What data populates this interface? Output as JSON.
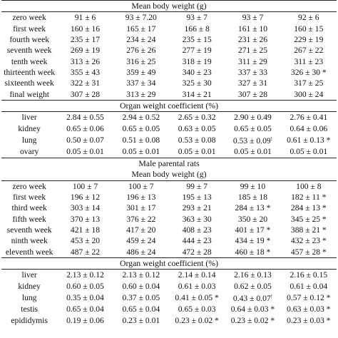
{
  "rows": [
    {
      "kind": "section",
      "text": "Mean body weight (g)",
      "ruleBottom": true
    },
    {
      "kind": "data",
      "label": "zero week",
      "values": [
        "91 ± 6",
        "93 ± 7.20",
        "93 ± 7",
        "93 ± 7",
        "92 ± 6"
      ]
    },
    {
      "kind": "data",
      "label": "first week",
      "values": [
        "160 ± 16",
        "165 ± 17",
        "166 ± 8",
        "161 ± 10",
        "160 ± 15"
      ]
    },
    {
      "kind": "data",
      "label": "fourth week",
      "values": [
        "235 ± 17",
        "234 ± 24",
        "235 ± 15",
        "231 ± 26",
        "229 ± 19"
      ]
    },
    {
      "kind": "data",
      "label": "seventh week",
      "values": [
        "269 ± 19",
        "276 ± 26",
        "277 ± 19",
        "271 ± 25",
        "267 ± 22"
      ]
    },
    {
      "kind": "data",
      "label": "tenth week",
      "values": [
        "313 ± 26",
        "316 ± 25",
        "318 ± 19",
        "311 ± 29",
        "311 ± 23"
      ]
    },
    {
      "kind": "data",
      "label": "thirteenth week",
      "values": [
        "355 ± 43",
        "359 ± 49",
        "340 ± 23",
        "337 ± 33",
        "326 ± 30 *"
      ]
    },
    {
      "kind": "data",
      "label": "sixteenth week",
      "values": [
        "322 ± 31",
        "337 ± 34",
        "325 ± 30",
        "327 ± 31",
        "317 ± 25"
      ]
    },
    {
      "kind": "data",
      "label": "final weight",
      "values": [
        "307 ± 28",
        "313 ± 29",
        "314 ± 21",
        "307 ± 28",
        "300 ± 24"
      ],
      "ruleBottom": true
    },
    {
      "kind": "section",
      "text": "Organ weight coefficient (%)",
      "ruleBottom": true
    },
    {
      "kind": "data",
      "label": "liver",
      "values": [
        "2.84 ± 0.55",
        "2.94 ± 0.52",
        "2.65 ± 0.32",
        "2.90 ± 0.49",
        "2.76 ± 0.41"
      ]
    },
    {
      "kind": "data",
      "label": "kidney",
      "values": [
        "0.65 ± 0.06",
        "0.65 ± 0.05",
        "0.63 ± 0.05",
        "0.65 ± 0.05",
        "0.64 ± 0.06"
      ]
    },
    {
      "kind": "data",
      "label": "lung",
      "values": [
        "0.50 ± 0.07",
        "0.51 ± 0.08",
        "0.53 ± 0.08",
        "0.53 ± 0.09",
        "0.61 ± 0.13 *"
      ],
      "sups": [
        null,
        null,
        null,
        "!",
        null
      ]
    },
    {
      "kind": "data",
      "label": "ovary",
      "values": [
        "0.05 ± 0.01",
        "0.05 ± 0.01",
        "0.05 ± 0.01",
        "0.05 ± 0.01",
        "0.05 ± 0.01"
      ],
      "ruleBottom": true
    },
    {
      "kind": "section",
      "text": "Male parental rats"
    },
    {
      "kind": "section",
      "text": "Mean body weight (g)",
      "ruleBottom": true
    },
    {
      "kind": "data",
      "label": "zero week",
      "values": [
        "100 ± 7",
        "100 ± 7",
        "99 ± 7",
        "99 ± 10",
        "100 ± 8"
      ]
    },
    {
      "kind": "data",
      "label": "first week",
      "values": [
        "196 ± 12",
        "196 ± 13",
        "195 ± 13",
        "185 ± 18",
        "182 ± 11 *"
      ]
    },
    {
      "kind": "data",
      "label": "third week",
      "values": [
        "303 ± 14",
        "301 ± 17",
        "293 ± 21",
        "284 ± 13 *",
        "284 ± 13 *"
      ]
    },
    {
      "kind": "data",
      "label": "fifth week",
      "values": [
        "370 ± 13",
        "376 ± 22",
        "363 ± 30",
        "350 ± 20",
        "345 ± 25 *"
      ]
    },
    {
      "kind": "data",
      "label": "seventh week",
      "values": [
        "421 ± 18",
        "417 ± 20",
        "408 ± 23",
        "401 ± 17 *",
        "388 ± 21 *"
      ]
    },
    {
      "kind": "data",
      "label": "ninth week",
      "values": [
        "453 ± 20",
        "459 ± 24",
        "444 ± 23",
        "434 ± 19 *",
        "432 ± 23 *"
      ]
    },
    {
      "kind": "data",
      "label": "eleventh week",
      "values": [
        "487 ± 22",
        "486 ± 24",
        "472 ± 28",
        "460 ± 18 *",
        "457 ± 28 *"
      ],
      "ruleBottom": true
    },
    {
      "kind": "section",
      "text": "Organ weight coefficient (%)",
      "ruleBottom": true
    },
    {
      "kind": "data",
      "label": "liver",
      "values": [
        "2.13 ± 0.12",
        "2.13 ± 0.12",
        "2.14 ± 0.14",
        "2.16 ± 0.13",
        "2.16 ± 0.15"
      ]
    },
    {
      "kind": "data",
      "label": "kidney",
      "values": [
        "0.60 ± 0.05",
        "0.60 ± 0.04",
        "0.61 ± 0.03",
        "0.62 ± 0.05",
        "0.61 ± 0.04"
      ]
    },
    {
      "kind": "data",
      "label": "lung",
      "values": [
        "0.35 ± 0.04",
        "0.37 ± 0.05",
        "0.41 ± 0.05 *",
        "0.43 ± 0.07",
        "0.57 ± 0.12 *"
      ],
      "sups": [
        null,
        null,
        null,
        "!",
        null
      ]
    },
    {
      "kind": "data",
      "label": "testis",
      "values": [
        "0.65 ± 0.04",
        "0.65 ± 0.04",
        "0.65 ± 0.03",
        "0.64 ± 0.03 *",
        "0.63 ± 0.03 *"
      ]
    },
    {
      "kind": "data",
      "label": "epididymis",
      "values": [
        "0.19 ± 0.06",
        "0.23 ± 0.01",
        "0.23 ± 0.02 *",
        "0.23 ± 0.02 *",
        "0.23 ± 0.03 *"
      ]
    }
  ]
}
